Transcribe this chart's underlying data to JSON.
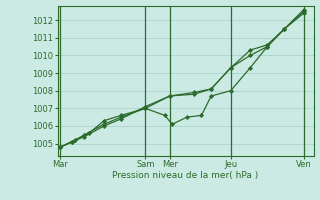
{
  "bg_color": "#cceae4",
  "grid_color": "#aad4cc",
  "line_color": "#2d6b2d",
  "marker_color": "#2d6b2d",
  "xlabel": "Pression niveau de la mer( hPa )",
  "ylim": [
    1004.3,
    1012.8
  ],
  "yticks": [
    1005,
    1006,
    1007,
    1008,
    1009,
    1010,
    1011,
    1012
  ],
  "xtick_labels": [
    "Mar",
    "",
    "Sam",
    "Mer",
    "",
    "Jeu",
    "",
    "Ven"
  ],
  "xtick_positions": [
    0,
    2.5,
    3.5,
    4.5,
    6.0,
    7.0,
    8.5,
    10.0
  ],
  "vlines": [
    0,
    3.5,
    4.5,
    7.0,
    10.0
  ],
  "xmin": -0.1,
  "xmax": 10.4,
  "series1_x": [
    0.0,
    0.5,
    1.0,
    1.8,
    2.5,
    3.5,
    4.5,
    5.5,
    6.2,
    7.0,
    7.8,
    8.5,
    9.2,
    10.0
  ],
  "series1_y": [
    1004.8,
    1005.1,
    1005.5,
    1006.1,
    1006.5,
    1007.0,
    1007.7,
    1007.9,
    1008.1,
    1009.3,
    1010.0,
    1010.5,
    1011.5,
    1012.5
  ],
  "series2_x": [
    0.0,
    0.6,
    1.2,
    1.8,
    2.5,
    3.5,
    4.3,
    4.6,
    5.2,
    5.8,
    6.2,
    7.0,
    7.8,
    8.5,
    9.2,
    10.0
  ],
  "series2_y": [
    1004.8,
    1005.2,
    1005.6,
    1006.3,
    1006.6,
    1007.0,
    1006.6,
    1006.1,
    1006.5,
    1006.6,
    1007.7,
    1008.0,
    1009.3,
    1010.5,
    1011.5,
    1012.6
  ],
  "series3_x": [
    0.0,
    0.5,
    1.0,
    1.8,
    2.5,
    3.5,
    4.5,
    5.5,
    6.2,
    7.0,
    7.8,
    8.5,
    9.2,
    10.0
  ],
  "series3_y": [
    1004.8,
    1005.1,
    1005.4,
    1006.0,
    1006.4,
    1007.1,
    1007.7,
    1007.8,
    1008.1,
    1009.3,
    1010.3,
    1010.6,
    1011.5,
    1012.4
  ]
}
